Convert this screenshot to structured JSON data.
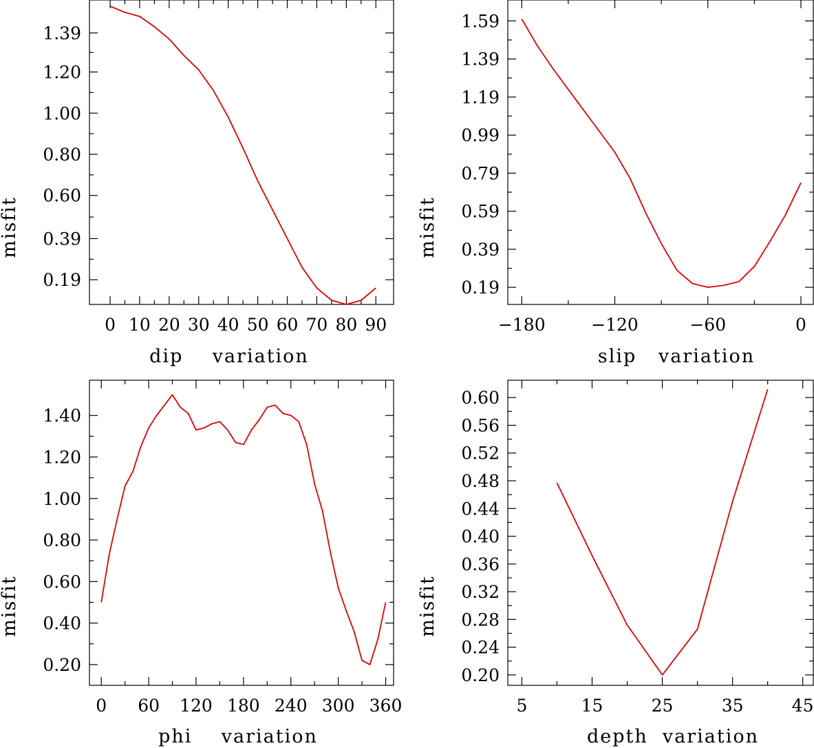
{
  "figure": {
    "series_color": "#e00000"
  },
  "chart_data": [
    {
      "id": "dip",
      "type": "line",
      "xlabel": "dip    variation",
      "ylabel": "misfit",
      "xlim": [
        -7,
        96
      ],
      "ylim": [
        0.07,
        1.55
      ],
      "xticks": [
        0,
        10,
        20,
        30,
        40,
        50,
        60,
        70,
        80,
        90
      ],
      "xtick_labels": [
        "0",
        "10",
        "20",
        "30",
        "40",
        "50",
        "60",
        "70",
        "80",
        "90"
      ],
      "yticks": [
        0.19,
        0.39,
        0.6,
        0.8,
        1.0,
        1.2,
        1.39
      ],
      "ytick_labels": [
        "0.19",
        "0.39",
        "0.60",
        "0.80",
        "1.00",
        "1.20",
        "1.39"
      ],
      "x": [
        0,
        5,
        10,
        15,
        20,
        25,
        30,
        35,
        40,
        45,
        50,
        55,
        60,
        65,
        70,
        75,
        80,
        85,
        90
      ],
      "y": [
        1.52,
        1.49,
        1.47,
        1.42,
        1.36,
        1.28,
        1.21,
        1.11,
        0.98,
        0.83,
        0.67,
        0.53,
        0.39,
        0.25,
        0.15,
        0.09,
        0.07,
        0.09,
        0.15
      ]
    },
    {
      "id": "slip",
      "type": "line",
      "xlabel": "slip   variation",
      "ylabel": "misfit",
      "xlim": [
        -189,
        8
      ],
      "ylim": [
        0.1,
        1.7
      ],
      "xticks": [
        -180,
        -120,
        -60,
        0
      ],
      "xtick_labels": [
        "−180",
        "−120",
        "−60",
        "0"
      ],
      "yticks": [
        0.19,
        0.39,
        0.59,
        0.79,
        0.99,
        1.19,
        1.39,
        1.59
      ],
      "ytick_labels": [
        "0.19",
        "0.39",
        "0.59",
        "0.79",
        "0.99",
        "1.19",
        "1.39",
        "1.59"
      ],
      "x": [
        -180,
        -170,
        -160,
        -150,
        -140,
        -130,
        -120,
        -110,
        -100,
        -90,
        -80,
        -70,
        -60,
        -50,
        -40,
        -30,
        -20,
        -10,
        0
      ],
      "y": [
        1.6,
        1.46,
        1.34,
        1.23,
        1.12,
        1.01,
        0.9,
        0.76,
        0.58,
        0.42,
        0.28,
        0.21,
        0.19,
        0.2,
        0.22,
        0.3,
        0.43,
        0.57,
        0.74
      ]
    },
    {
      "id": "phi",
      "type": "line",
      "xlabel": "phi    variation",
      "ylabel": "misfit",
      "xlim": [
        -15,
        370
      ],
      "ylim": [
        0.1,
        1.57
      ],
      "xticks": [
        0,
        60,
        120,
        180,
        240,
        300,
        360
      ],
      "xtick_labels": [
        "0",
        "60",
        "120",
        "180",
        "240",
        "300",
        "360"
      ],
      "yticks": [
        0.2,
        0.4,
        0.6,
        0.8,
        1.0,
        1.2,
        1.4
      ],
      "ytick_labels": [
        "0.20",
        "0.40",
        "0.60",
        "0.80",
        "1.00",
        "1.20",
        "1.40"
      ],
      "x": [
        0,
        10,
        20,
        30,
        40,
        50,
        60,
        70,
        80,
        90,
        100,
        110,
        120,
        130,
        140,
        150,
        160,
        170,
        180,
        190,
        200,
        210,
        220,
        230,
        240,
        250,
        260,
        270,
        280,
        290,
        300,
        310,
        320,
        330,
        340,
        350,
        360
      ],
      "y": [
        0.5,
        0.73,
        0.9,
        1.06,
        1.13,
        1.25,
        1.34,
        1.4,
        1.45,
        1.5,
        1.44,
        1.41,
        1.33,
        1.34,
        1.36,
        1.37,
        1.33,
        1.27,
        1.26,
        1.33,
        1.38,
        1.44,
        1.45,
        1.41,
        1.4,
        1.37,
        1.26,
        1.07,
        0.94,
        0.74,
        0.57,
        0.46,
        0.36,
        0.22,
        0.2,
        0.32,
        0.5
      ]
    },
    {
      "id": "depth",
      "type": "line",
      "xlabel": "depth  variation",
      "ylabel": "misfit",
      "xlim": [
        3,
        46.5
      ],
      "ylim": [
        0.185,
        0.625
      ],
      "xticks": [
        5,
        15,
        25,
        35,
        45
      ],
      "xtick_labels": [
        "5",
        "15",
        "25",
        "35",
        "45"
      ],
      "yticks": [
        0.2,
        0.24,
        0.28,
        0.32,
        0.36,
        0.4,
        0.44,
        0.48,
        0.52,
        0.56,
        0.6
      ],
      "ytick_labels": [
        "0.20",
        "0.24",
        "0.28",
        "0.32",
        "0.36",
        "0.40",
        "0.44",
        "0.48",
        "0.52",
        "0.56",
        "0.60"
      ],
      "x": [
        10,
        15,
        20,
        25,
        30,
        35,
        40
      ],
      "y": [
        0.477,
        0.372,
        0.272,
        0.2,
        0.266,
        0.45,
        0.612
      ]
    }
  ]
}
